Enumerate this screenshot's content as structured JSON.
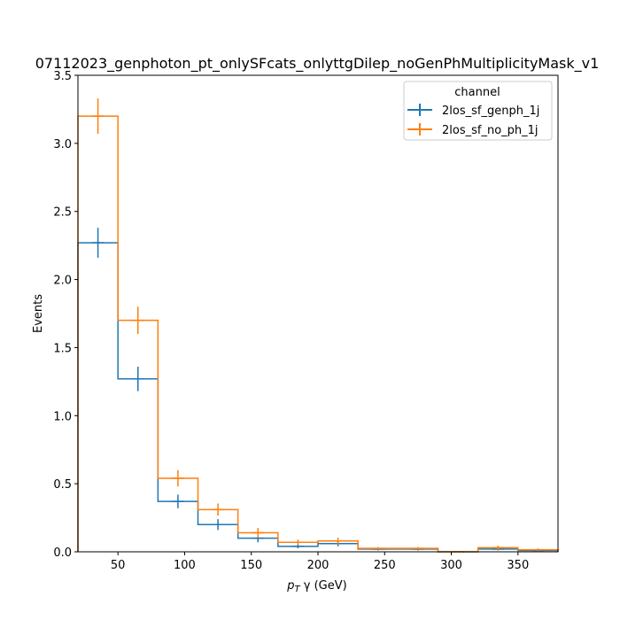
{
  "chart_data": {
    "type": "histogram",
    "title": "07112023_genphoton_pt_onlySFcats_onlyttgDilep_noGenPhMultiplicityMask_v1",
    "xlabel_prefix": "p",
    "xlabel_sub": "T",
    "xlabel_suffix": " γ (GeV)",
    "ylabel": "Events",
    "xlim": [
      20,
      380
    ],
    "ylim": [
      0,
      3.5
    ],
    "xticks": [
      50,
      100,
      150,
      200,
      250,
      300,
      350
    ],
    "yticks": [
      0.0,
      0.5,
      1.0,
      1.5,
      2.0,
      2.5,
      3.0,
      3.5
    ],
    "yticks_labels": [
      "0.0",
      "0.5",
      "1.0",
      "1.5",
      "2.0",
      "2.5",
      "3.0",
      "3.5"
    ],
    "bin_edges": [
      20,
      50,
      80,
      110,
      140,
      170,
      200,
      230,
      260,
      290,
      320,
      350,
      380
    ],
    "legend": {
      "title": "channel",
      "placement": "upper right"
    },
    "grid": false,
    "series": [
      {
        "name": "2los_sf_genph_1j",
        "color": "#1f77b4",
        "values": [
          2.27,
          1.27,
          0.37,
          0.2,
          0.1,
          0.04,
          0.06,
          0.02,
          0.02,
          0.0,
          0.02,
          0.01
        ],
        "errors": [
          0.11,
          0.09,
          0.05,
          0.04,
          0.03,
          0.015,
          0.02,
          0.01,
          0.01,
          0.0,
          0.01,
          0.005
        ]
      },
      {
        "name": "2los_sf_no_ph_1j",
        "color": "#ff7f0e",
        "values": [
          3.2,
          1.7,
          0.54,
          0.31,
          0.14,
          0.07,
          0.08,
          0.025,
          0.025,
          0.0,
          0.03,
          0.015
        ],
        "errors": [
          0.13,
          0.1,
          0.06,
          0.045,
          0.035,
          0.02,
          0.025,
          0.01,
          0.01,
          0.0,
          0.015,
          0.01
        ]
      }
    ]
  }
}
